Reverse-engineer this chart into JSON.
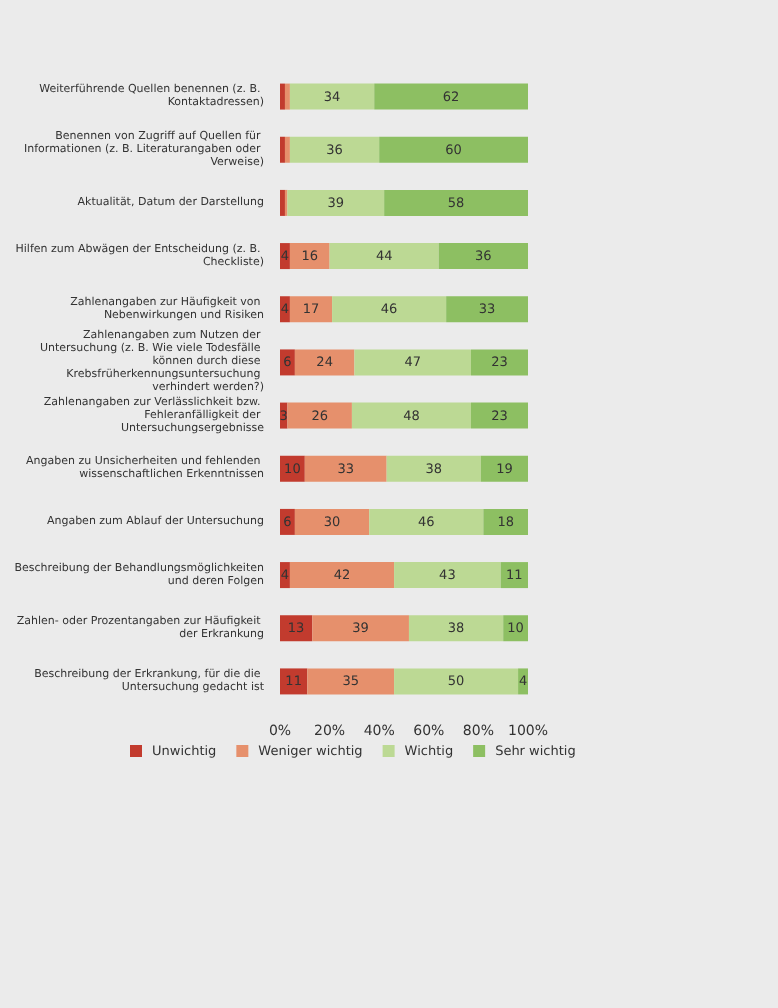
{
  "chart_data": {
    "type": "bar",
    "orientation": "horizontal",
    "stacked": true,
    "legend": "bottom",
    "grid": false,
    "categories": [
      "Weiterführende Quellen benennen (z. B. Kontaktadressen)",
      "Benennen von Zugriff auf Quellen für Informationen (z. B. Literaturangaben oder Verweise)",
      "Aktualität, Datum der Darstellung",
      "Hilfen zum Abwägen der Entscheidung (z. B. Checkliste)",
      "Zahlenangaben zur Häufigkeit von Nebenwirkungen und Risiken",
      "Zahlenangaben zum Nutzen der Untersuchung (z. B. Wie viele Todesfälle können durch diese Krebsfrüherkennungsuntersuchung verhindert werden?)",
      "Zahlenangaben zur Verlässlichkeit bzw. Fehleranfälligkeit der Untersuchungsergebnisse",
      "Angaben zu Unsicherheiten und fehlenden wissenschaftlichen Erkenntnissen",
      "Angaben zum Ablauf der Untersuchung",
      "Beschreibung der Behandlungsmöglichkeiten und deren Folgen",
      "Zahlen- oder Prozentangaben zur Häufigkeit der Erkrankung",
      "Beschreibung der Erkrankung, für die die Untersuchung gedacht ist"
    ],
    "series": [
      {
        "name": "Unwichtig",
        "color": "#c23b2e",
        "values": [
          2,
          2,
          2,
          4,
          4,
          6,
          3,
          10,
          6,
          4,
          13,
          11
        ],
        "value_labels": [
          null,
          null,
          null,
          "4",
          "4",
          "6",
          "3",
          "10",
          "6",
          "4",
          "13",
          "11"
        ]
      },
      {
        "name": "Weniger wichtig",
        "color": "#e6906c",
        "values": [
          2,
          2,
          1,
          16,
          17,
          24,
          26,
          33,
          30,
          42,
          39,
          35
        ],
        "value_labels": [
          null,
          null,
          null,
          "16",
          "17",
          "24",
          "26",
          "33",
          "30",
          "42",
          "39",
          "35"
        ]
      },
      {
        "name": "Wichtig",
        "color": "#bcd994",
        "values": [
          34,
          36,
          39,
          44,
          46,
          47,
          48,
          38,
          46,
          43,
          38,
          50
        ],
        "value_labels": [
          "34",
          "36",
          "39",
          "44",
          "46",
          "47",
          "48",
          "38",
          "46",
          "43",
          "38",
          "50"
        ]
      },
      {
        "name": "Sehr wichtig",
        "color": "#8dbf62",
        "values": [
          62,
          60,
          58,
          36,
          33,
          23,
          23,
          19,
          18,
          11,
          10,
          4
        ],
        "value_labels": [
          "62",
          "60",
          "58",
          "36",
          "33",
          "23",
          "23",
          "19",
          "18",
          "11",
          "10",
          "4"
        ]
      }
    ],
    "xlim": [
      0,
      100
    ],
    "xticks": [
      {
        "value": 0,
        "label": "0%"
      },
      {
        "value": 20,
        "label": "20%"
      },
      {
        "value": 40,
        "label": "40%"
      },
      {
        "value": 60,
        "label": "60%"
      },
      {
        "value": 80,
        "label": "80%"
      },
      {
        "value": 100,
        "label": "100%"
      }
    ]
  }
}
